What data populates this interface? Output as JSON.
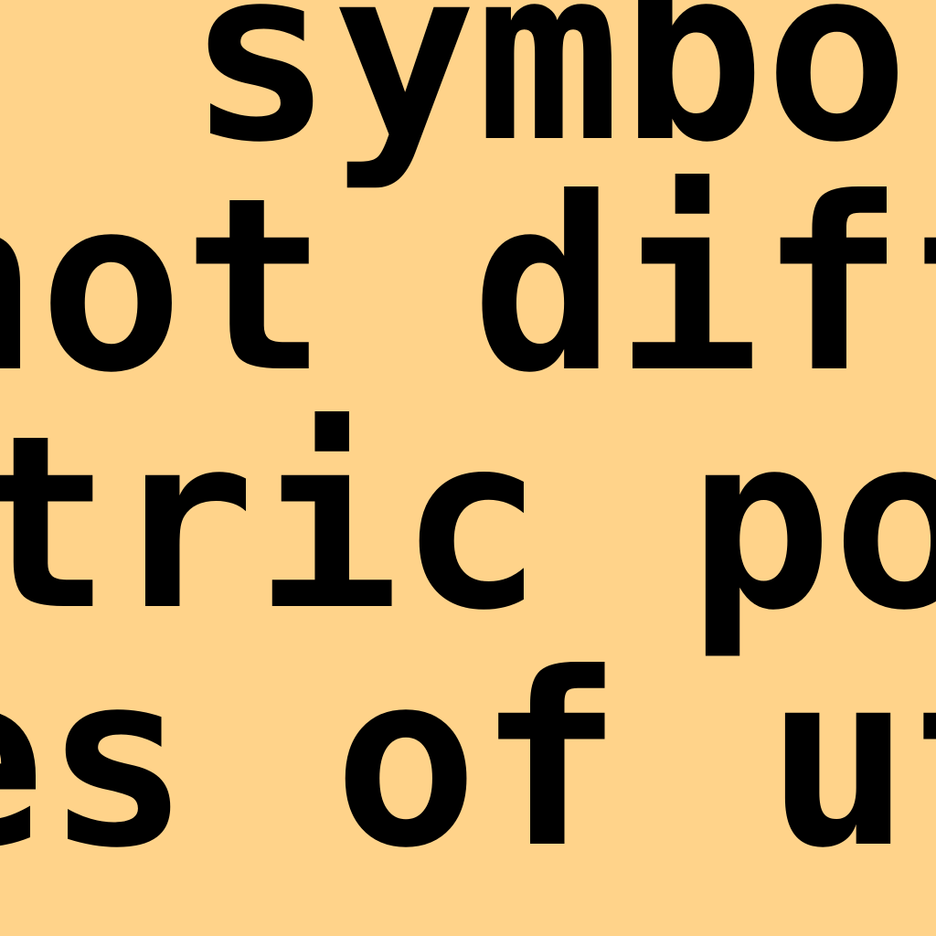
{
  "document": {
    "lines": [
      " symbols",
      "not diffe",
      "tric pow",
      "es of uti"
    ]
  },
  "colors": {
    "background": "#FFD38A",
    "text": "#000000"
  }
}
